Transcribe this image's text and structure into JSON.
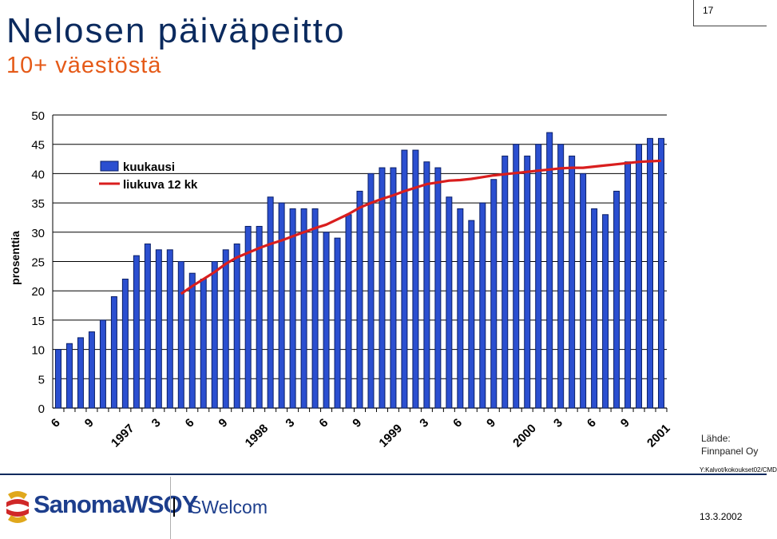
{
  "header": {
    "title": "Nelosen päiväpeitto",
    "subtitle": "10+ väestöstä",
    "page_number": "17"
  },
  "footer": {
    "source_label": "Lähde:",
    "source_name": "Finnpanel Oy",
    "file_path": "Y:Kalvot/kokoukset02/CMD",
    "brand": "SanomaWSOY",
    "unit": "SWelcom",
    "date": "13.3.2002"
  },
  "colors": {
    "bar": "#2b4fd0",
    "bar_edge": "#0a1f66",
    "line": "#d91e1e",
    "title": "#0b2a5e",
    "subtitle": "#e55a18"
  },
  "chart_data": {
    "type": "bar",
    "ylabel": "prosenttia",
    "ylim": [
      0,
      50
    ],
    "yticks": [
      0,
      5,
      10,
      15,
      20,
      25,
      30,
      35,
      40,
      45,
      50
    ],
    "grid": true,
    "legend_position": "top-left",
    "x_tick_labels": [
      {
        "index": 0,
        "label": "6"
      },
      {
        "index": 3,
        "label": "9"
      },
      {
        "index": 6,
        "label": "1997"
      },
      {
        "index": 9,
        "label": "3"
      },
      {
        "index": 12,
        "label": "6"
      },
      {
        "index": 15,
        "label": "9"
      },
      {
        "index": 18,
        "label": "1998"
      },
      {
        "index": 21,
        "label": "3"
      },
      {
        "index": 24,
        "label": "6"
      },
      {
        "index": 27,
        "label": "9"
      },
      {
        "index": 30,
        "label": "1999"
      },
      {
        "index": 33,
        "label": "3"
      },
      {
        "index": 36,
        "label": "6"
      },
      {
        "index": 39,
        "label": "9"
      },
      {
        "index": 42,
        "label": "2000"
      },
      {
        "index": 45,
        "label": "3"
      },
      {
        "index": 48,
        "label": "6"
      },
      {
        "index": 51,
        "label": "9"
      },
      {
        "index": 54,
        "label": "2001"
      }
    ],
    "series": [
      {
        "name": "kuukausi",
        "type": "bar",
        "values": [
          10,
          11,
          12,
          13,
          15,
          19,
          22,
          26,
          28,
          27,
          27,
          25,
          23,
          22,
          25,
          27,
          28,
          31,
          31,
          36,
          35,
          34,
          34,
          34,
          30,
          29,
          33,
          37,
          40,
          41,
          41,
          44,
          44,
          42,
          41,
          36,
          34,
          32,
          35,
          39,
          43,
          45,
          43,
          45,
          47,
          45,
          43,
          40,
          34,
          33,
          37,
          42,
          45,
          46,
          46
        ]
      },
      {
        "name": "liukuva 12 kk",
        "type": "line",
        "start_index": 11,
        "values": [
          19.5,
          20.8,
          22,
          23.2,
          24.6,
          25.7,
          26.5,
          27.3,
          28,
          28.6,
          29.3,
          30,
          30.7,
          31.3,
          32.2,
          33.1,
          34.2,
          35,
          35.7,
          36.3,
          37,
          37.6,
          38.2,
          38.5,
          38.8,
          38.9,
          39.1,
          39.4,
          39.7,
          39.9,
          40.1,
          40.3,
          40.5,
          40.7,
          40.9,
          41,
          41,
          41.2,
          41.4,
          41.6,
          41.8,
          42,
          42.1,
          42.2
        ]
      }
    ]
  }
}
